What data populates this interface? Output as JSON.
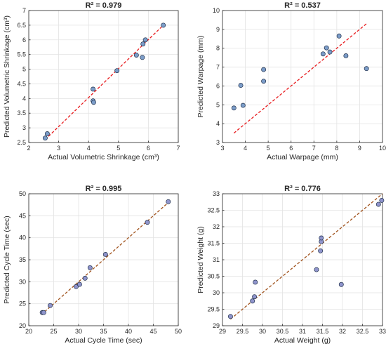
{
  "chart_data": [
    {
      "type": "scatter",
      "title": "R² = 0.979",
      "xlabel": "Actual Volumetric Shrinkage (cm³)",
      "ylabel": "Predicted Volumetric Shrinkage (cm³)",
      "xlim": [
        2,
        7
      ],
      "ylim": [
        2.5,
        7
      ],
      "xticks": [
        2,
        3,
        4,
        5,
        6,
        7
      ],
      "yticks": [
        2.5,
        3,
        3.5,
        4,
        4.5,
        5,
        5.5,
        6,
        6.5,
        7
      ],
      "xticklabels": [
        "2",
        "3",
        "4",
        "5",
        "6",
        "7"
      ],
      "yticklabels": [
        "2.5",
        "3",
        "3.5",
        "4",
        "4.5",
        "5",
        "5.5",
        "6",
        "6.5",
        "7"
      ],
      "grid": true,
      "fit_line": {
        "x": [
          2.55,
          6.5
        ],
        "y": [
          2.6,
          6.5
        ],
        "color": "#e8191c"
      },
      "marker_color": "#7c9dc9",
      "points": [
        {
          "x": 2.55,
          "y": 2.65
        },
        {
          "x": 2.62,
          "y": 2.8
        },
        {
          "x": 4.15,
          "y": 4.32
        },
        {
          "x": 4.15,
          "y": 3.92
        },
        {
          "x": 4.17,
          "y": 3.87
        },
        {
          "x": 4.95,
          "y": 4.95
        },
        {
          "x": 5.6,
          "y": 5.48
        },
        {
          "x": 5.8,
          "y": 5.4
        },
        {
          "x": 5.82,
          "y": 5.86
        },
        {
          "x": 5.9,
          "y": 6.0
        },
        {
          "x": 6.5,
          "y": 6.5
        }
      ]
    },
    {
      "type": "scatter",
      "title": "R² = 0.537",
      "xlabel": "Actual Warpage (mm)",
      "ylabel": "Predicted Warpage (mm)",
      "xlim": [
        3,
        10
      ],
      "ylim": [
        3,
        10
      ],
      "xticks": [
        3,
        4,
        5,
        6,
        7,
        8,
        9,
        10
      ],
      "yticks": [
        3,
        4,
        5,
        6,
        7,
        8,
        9,
        10
      ],
      "xticklabels": [
        "3",
        "4",
        "5",
        "6",
        "7",
        "8",
        "9",
        "10"
      ],
      "yticklabels": [
        "3",
        "4",
        "5",
        "6",
        "7",
        "8",
        "9",
        "10"
      ],
      "grid": true,
      "fit_line": {
        "x": [
          3.5,
          9.3
        ],
        "y": [
          3.5,
          9.3
        ],
        "color": "#e8191c"
      },
      "marker_color": "#7c9dc9",
      "points": [
        {
          "x": 3.5,
          "y": 4.83
        },
        {
          "x": 3.8,
          "y": 6.03
        },
        {
          "x": 3.9,
          "y": 4.97
        },
        {
          "x": 4.8,
          "y": 6.87
        },
        {
          "x": 4.8,
          "y": 6.25
        },
        {
          "x": 7.4,
          "y": 7.7
        },
        {
          "x": 7.55,
          "y": 8.02
        },
        {
          "x": 7.7,
          "y": 7.8
        },
        {
          "x": 8.1,
          "y": 8.65
        },
        {
          "x": 8.4,
          "y": 7.6
        },
        {
          "x": 9.3,
          "y": 6.92
        }
      ]
    },
    {
      "type": "scatter",
      "title": "R² = 0.995",
      "xlabel": "Actual Cycle Time (sec)",
      "ylabel": "Predicted Cycle Time (sec)",
      "xlim": [
        20,
        50
      ],
      "ylim": [
        20,
        50
      ],
      "xticks": [
        20,
        25,
        30,
        35,
        40,
        45,
        50
      ],
      "yticks": [
        20,
        25,
        30,
        35,
        40,
        45,
        50
      ],
      "xticklabels": [
        "20",
        "25",
        "30",
        "35",
        "40",
        "45",
        "50"
      ],
      "yticklabels": [
        "20",
        "25",
        "30",
        "35",
        "40",
        "45",
        "50"
      ],
      "grid": true,
      "fit_line": {
        "x": [
          22.5,
          48
        ],
        "y": [
          22.5,
          48
        ],
        "color": "#a0521c"
      },
      "marker_color": "#8f94cc",
      "points": [
        {
          "x": 22.7,
          "y": 23.0
        },
        {
          "x": 23.0,
          "y": 23.0
        },
        {
          "x": 24.3,
          "y": 24.6
        },
        {
          "x": 29.5,
          "y": 28.9
        },
        {
          "x": 30.2,
          "y": 29.4
        },
        {
          "x": 31.3,
          "y": 30.8
        },
        {
          "x": 32.3,
          "y": 33.2
        },
        {
          "x": 35.4,
          "y": 36.2
        },
        {
          "x": 43.8,
          "y": 43.5
        },
        {
          "x": 48.0,
          "y": 48.2
        }
      ]
    },
    {
      "type": "scatter",
      "title": "R² = 0.776",
      "xlabel": "Actual Weight (g)",
      "ylabel": "Predicted Weight (g)",
      "xlim": [
        29,
        33
      ],
      "ylim": [
        29,
        33
      ],
      "xticks": [
        29,
        29.5,
        30,
        30.5,
        31,
        31.5,
        32,
        32.5,
        33
      ],
      "yticks": [
        29,
        29.5,
        30,
        30.5,
        31,
        31.5,
        32,
        32.5,
        33
      ],
      "xticklabels": [
        "29",
        "29.5",
        "30",
        "30.5",
        "31",
        "31.5",
        "32",
        "32.5",
        "33"
      ],
      "yticklabels": [
        "29",
        "29.5",
        "30",
        "30.5",
        "31",
        "31.5",
        "32",
        "32.5",
        "33"
      ],
      "grid": true,
      "fit_line": {
        "x": [
          29.2,
          33.0
        ],
        "y": [
          29.2,
          33.0
        ],
        "color": "#a0521c"
      },
      "marker_color": "#8f94cc",
      "points": [
        {
          "x": 29.2,
          "y": 29.28
        },
        {
          "x": 29.75,
          "y": 29.75
        },
        {
          "x": 29.8,
          "y": 29.88
        },
        {
          "x": 29.82,
          "y": 30.32
        },
        {
          "x": 31.35,
          "y": 30.7
        },
        {
          "x": 31.45,
          "y": 31.27
        },
        {
          "x": 31.47,
          "y": 31.55
        },
        {
          "x": 31.47,
          "y": 31.66
        },
        {
          "x": 31.97,
          "y": 30.25
        },
        {
          "x": 32.9,
          "y": 32.68
        },
        {
          "x": 32.98,
          "y": 32.8
        }
      ]
    }
  ]
}
